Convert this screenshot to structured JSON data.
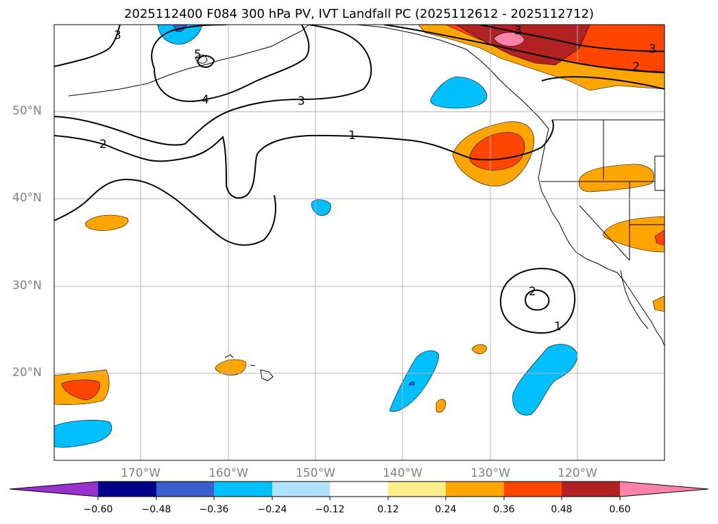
{
  "title": "2025112400 F084 300 hPa PV, IVT Landfall PC (2025112612 - 2025112712)",
  "map": {
    "lat_labels": [
      "50°N",
      "40°N",
      "30°N",
      "20°N"
    ],
    "lon_labels": [
      "170°W",
      "160°W",
      "150°W",
      "140°W",
      "130°W",
      "120°W"
    ],
    "contour_labels": [
      "3",
      "5",
      "4",
      "3",
      "2",
      "1",
      "2",
      "1",
      "3",
      "2",
      "3"
    ]
  },
  "colorbar": {
    "ticks": [
      "−0.60",
      "−0.48",
      "−0.36",
      "−0.24",
      "−0.12",
      "0.12",
      "0.24",
      "0.36",
      "0.48",
      "0.60"
    ],
    "colors": [
      "#9932cc",
      "#00008b",
      "#3a5fcd",
      "#00bfff",
      "#b0e2ff",
      "#ffffff",
      "#ffec8b",
      "#ffa500",
      "#ff4500",
      "#b22222",
      "#ff82ab"
    ]
  }
}
